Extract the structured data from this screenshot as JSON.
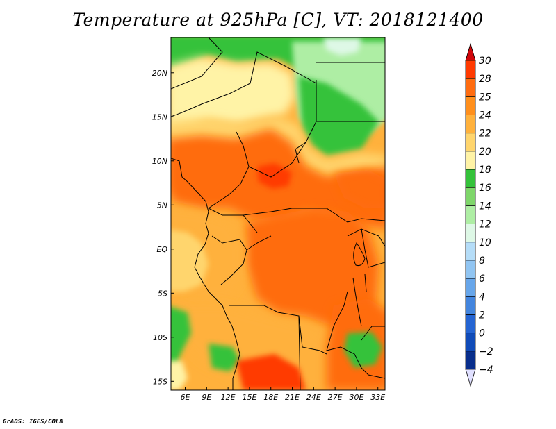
{
  "title": "Temperature at 925hPa [C], VT: 2018121400",
  "credit": "GrADS: IGES/COLA",
  "map": {
    "lon_range": [
      4,
      34
    ],
    "lat_range": [
      -16,
      24
    ],
    "lon_ticks": [
      {
        "lon": 6,
        "label": "6E"
      },
      {
        "lon": 9,
        "label": "9E"
      },
      {
        "lon": 12,
        "label": "12E"
      },
      {
        "lon": 15,
        "label": "15E"
      },
      {
        "lon": 18,
        "label": "18E"
      },
      {
        "lon": 21,
        "label": "21E"
      },
      {
        "lon": 24,
        "label": "24E"
      },
      {
        "lon": 27,
        "label": "27E"
      },
      {
        "lon": 30,
        "label": "30E"
      },
      {
        "lon": 33,
        "label": "33E"
      }
    ],
    "lat_ticks": [
      {
        "lat": 20,
        "label": "20N"
      },
      {
        "lat": 15,
        "label": "15N"
      },
      {
        "lat": 10,
        "label": "10N"
      },
      {
        "lat": 5,
        "label": "5N"
      },
      {
        "lat": 0,
        "label": "EQ"
      },
      {
        "lat": -5,
        "label": "5S"
      },
      {
        "lat": -10,
        "label": "10S"
      },
      {
        "lat": -15,
        "label": "15S"
      }
    ]
  },
  "colorbar": {
    "labels": [
      "30",
      "28",
      "25",
      "24",
      "22",
      "20",
      "18",
      "16",
      "14",
      "12",
      "10",
      "8",
      "6",
      "4",
      "2",
      "0",
      "−2",
      "−4"
    ],
    "colors": {
      "gt30": "#d0060a",
      "28_30": "#ff3a00",
      "25_28": "#ff6c10",
      "24_25": "#ff8f1c",
      "22_24": "#ffb13c",
      "20_22": "#ffd56d",
      "18_20": "#fff3a6",
      "16_18": "#34c23a",
      "14_16": "#7ed66a",
      "12_14": "#aeeea4",
      "10_12": "#def8e6",
      "8_10": "#b5ddf8",
      "6_8": "#91c5f2",
      "4_6": "#67a6ea",
      "2_4": "#4385de",
      "0_2": "#2464d2",
      "-2_0": "#104bb8",
      "-4_-2": "#082e8c",
      "lt-4": "#000a66",
      "under_arrow": "#e0e0ff"
    }
  },
  "regions": [
    {
      "name": "sahara-north-green",
      "band": "16_18"
    },
    {
      "name": "libya-egypt-light-green",
      "band": "12_14"
    },
    {
      "name": "north-west-yellow",
      "band": "18_20"
    },
    {
      "name": "sahel-band",
      "band": "22_24"
    },
    {
      "name": "central-hot-core",
      "band": "25_28"
    },
    {
      "name": "congo-basin",
      "band": "25_28"
    },
    {
      "name": "gabon-coast",
      "band": "22_24"
    },
    {
      "name": "angola-plateau",
      "band": "22_24"
    },
    {
      "name": "southern-hot",
      "band": "28_30"
    },
    {
      "name": "east-africa-hot",
      "band": "25_28"
    },
    {
      "name": "highlands-green",
      "band": "16_18"
    }
  ]
}
